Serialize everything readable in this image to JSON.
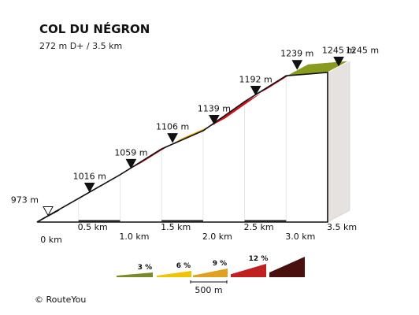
{
  "title": "COL DU NÉGRON",
  "subtitle": "272 m D+ / 3.5 km",
  "copyright": "© RouteYou",
  "colors": {
    "grade_3": "#8a9a1e",
    "grade_6": "#f0a800",
    "grade_9": "#d0101a",
    "grade_12": "#4a0c0c",
    "legend_3": "#7a8a28",
    "legend_6": "#f0c400",
    "legend_9": "#e0a020",
    "legend_12": "#c02020",
    "legend_13": "#4a1010",
    "side_wall": "#e5e2e0",
    "km_marker": "#222222"
  },
  "chart_data": {
    "type": "area",
    "title": "COL DU NÉGRON",
    "subtitle": "272 m D+ / 3.5 km",
    "xlabel": "",
    "ylabel": "",
    "x_unit": "km",
    "y_unit": "m",
    "xlim": [
      0,
      3.5
    ],
    "ylim": [
      973,
      1245
    ],
    "points": [
      {
        "x": 0.0,
        "y": 973,
        "label": "973 m",
        "marker": "start"
      },
      {
        "x": 0.5,
        "y": 1016,
        "label": "1016 m",
        "marker": "filled"
      },
      {
        "x": 1.0,
        "y": 1059,
        "label": "1059 m",
        "marker": "filled"
      },
      {
        "x": 1.5,
        "y": 1106,
        "label": "1106 m",
        "marker": "filled"
      },
      {
        "x": 2.0,
        "y": 1139,
        "label": "1139 m",
        "marker": "filled"
      },
      {
        "x": 2.5,
        "y": 1192,
        "label": "1192 m",
        "marker": "filled"
      },
      {
        "x": 3.0,
        "y": 1239,
        "label": "1239 m",
        "marker": "filled"
      },
      {
        "x": 3.5,
        "y": 1245,
        "label": "1245 m",
        "marker": "filled"
      }
    ],
    "end_label": "1245 m",
    "segment_colors": [
      "grade_6",
      "grade_6",
      "grade_9",
      "grade_6",
      "grade_9",
      "grade_9",
      "grade_3"
    ],
    "x_tick_labels": [
      "0 km",
      "0.5 km",
      "1.0 km",
      "1.5 km",
      "2.0 km",
      "2.5 km",
      "3.0 km",
      "3.5 km"
    ],
    "legend": {
      "entries": [
        {
          "label": "3 %",
          "color": "legend_3"
        },
        {
          "label": "6 %",
          "color": "legend_6"
        },
        {
          "label": "9 %",
          "color": "legend_9"
        },
        {
          "label": "12 %",
          "color": "legend_12"
        },
        {
          "label": "",
          "color": "legend_13"
        }
      ],
      "scale_label": "500 m"
    }
  }
}
